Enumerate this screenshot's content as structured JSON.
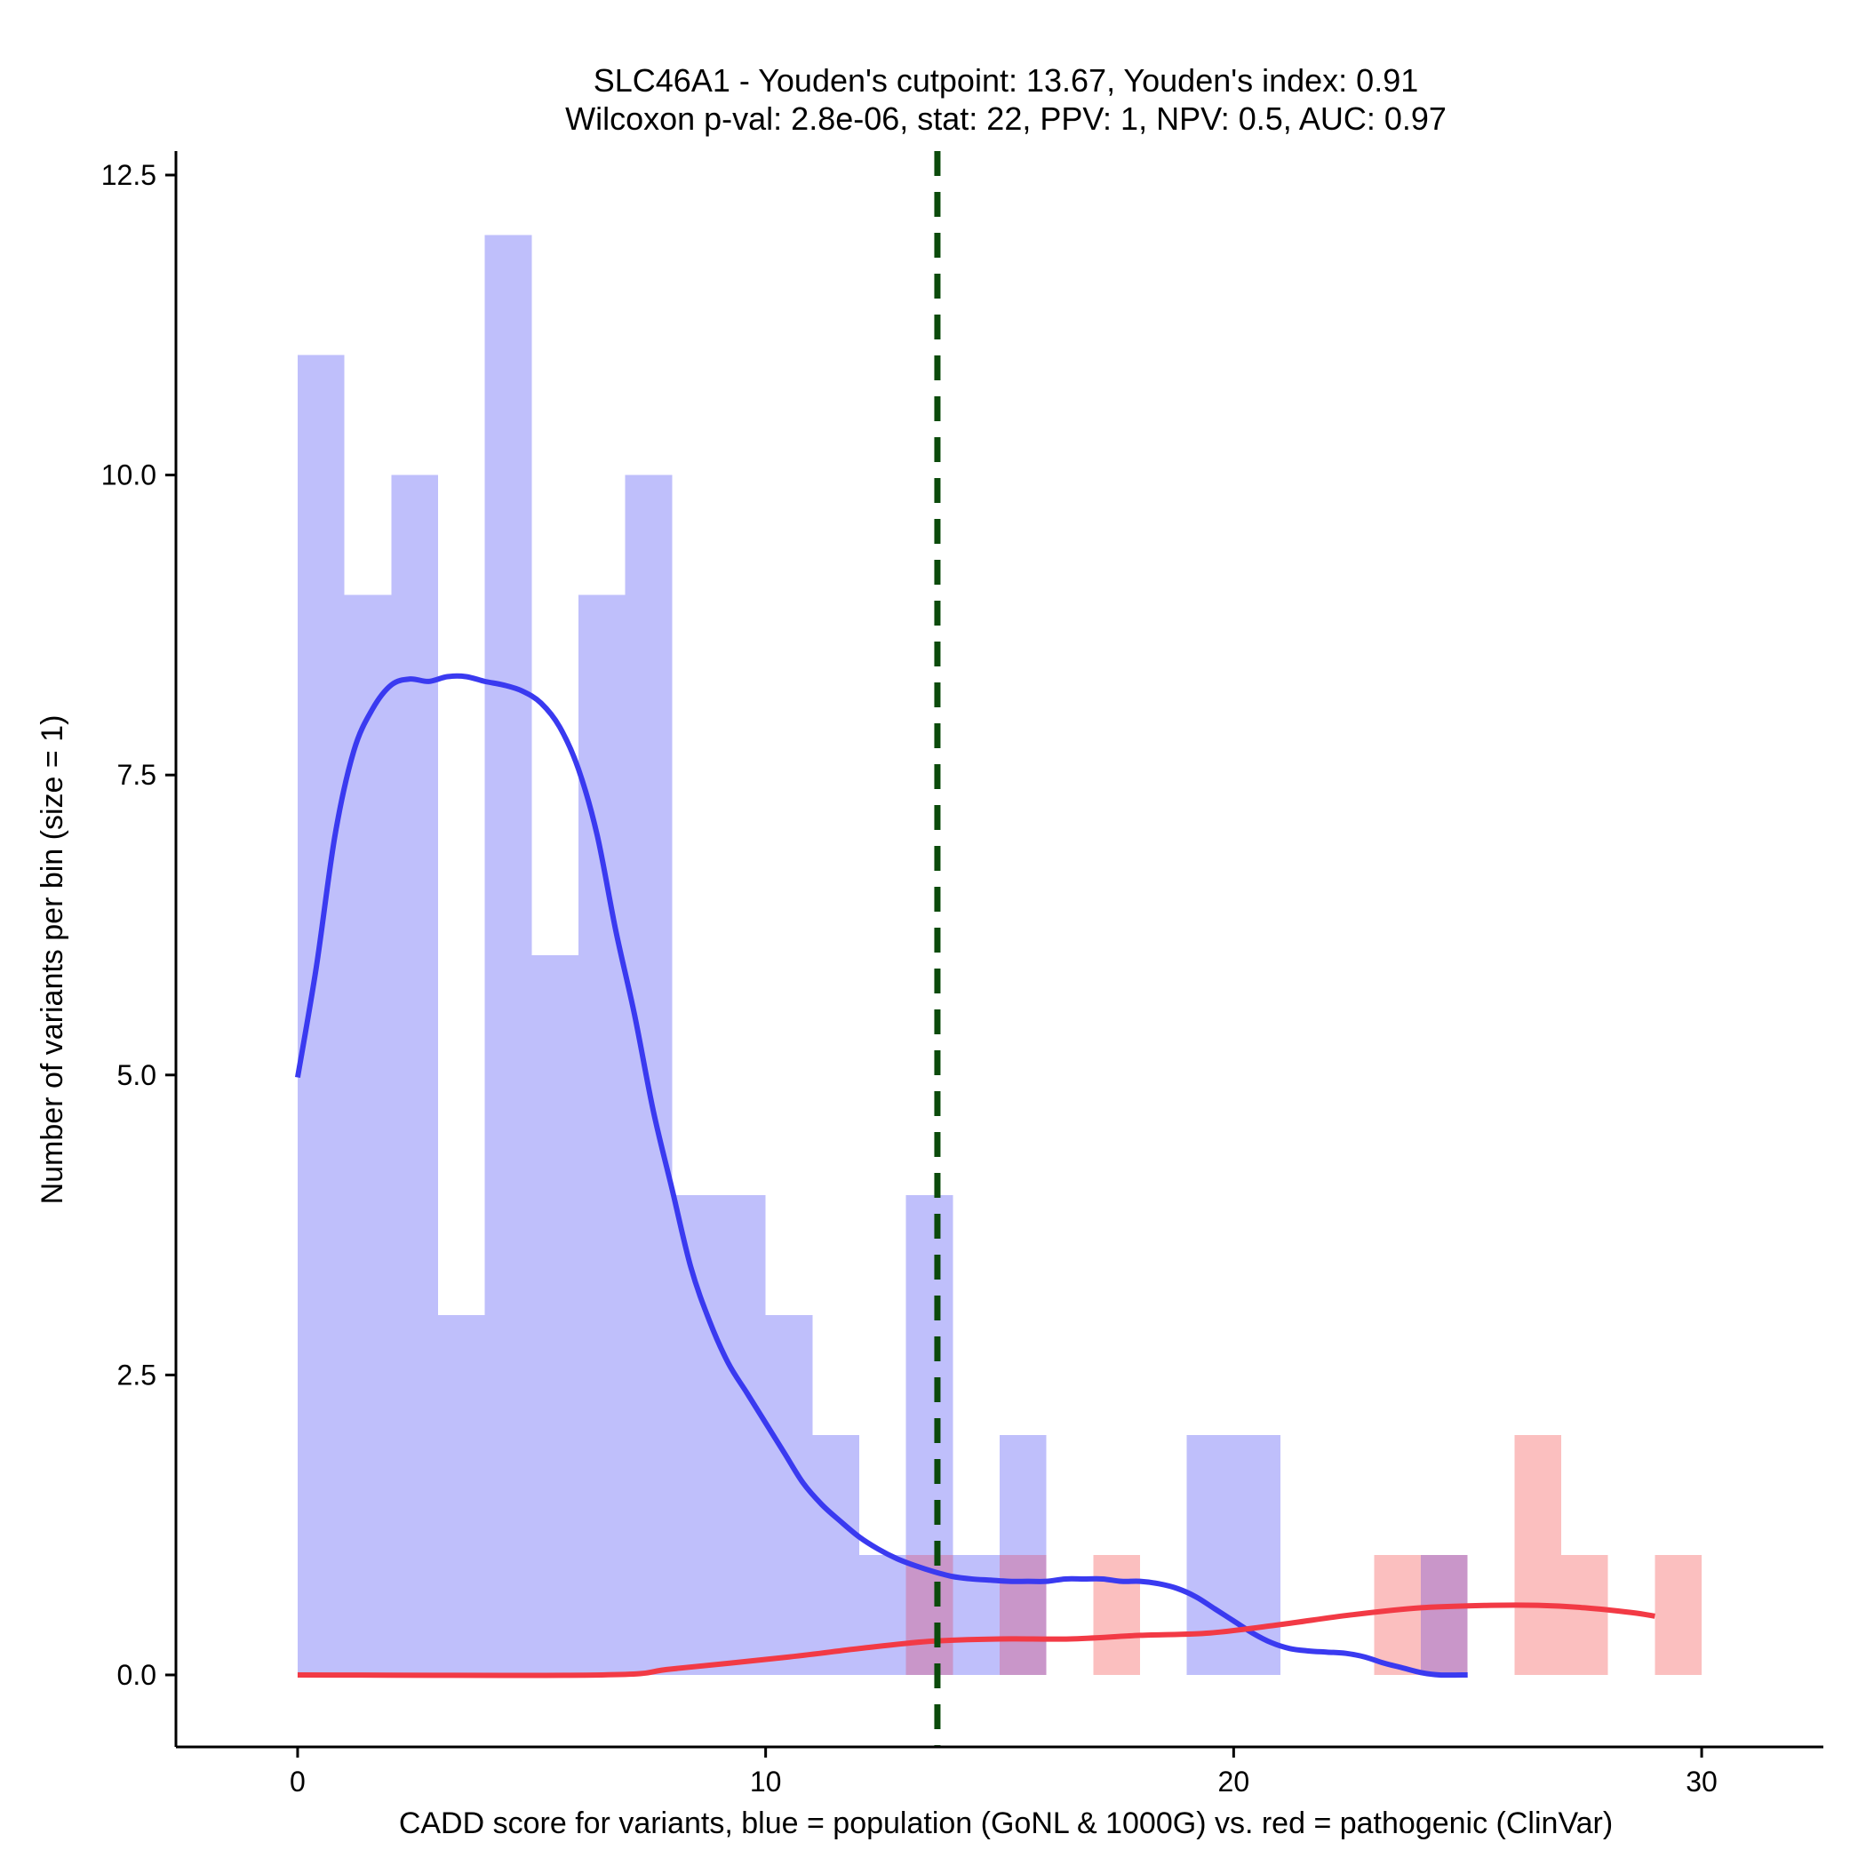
{
  "chart_data": {
    "type": "histogram",
    "title_lines": [
      "SLC46A1 - Youden's cutpoint: 13.67, Youden's index: 0.91",
      "Wilcoxon p-val: 2.8e-06, stat: 22, PPV: 1, NPV: 0.5, AUC: 0.97"
    ],
    "xlabel": "CADD score for variants, blue = population (GoNL & 1000G) vs. red = pathogenic (ClinVar)",
    "ylabel": "Number of variants per bin (size = 1)",
    "xlim": [
      -2.6,
      32.6
    ],
    "ylim": [
      -0.6,
      12.7
    ],
    "xticks": [
      0,
      10,
      20,
      30
    ],
    "xtick_labels": [
      "0",
      "10",
      "20",
      "30"
    ],
    "yticks": [
      0,
      2.5,
      5,
      7.5,
      10,
      12.5
    ],
    "ytick_labels": [
      "0.0",
      "2.5",
      "5.0",
      "7.5",
      "10.0",
      "12.5"
    ],
    "bin_width": 1,
    "cutpoint": 13.67,
    "colors": {
      "population_fill": "#bfbffb",
      "pathogenic_fill": "#fbbfbf",
      "overlap_fill": "#c996c9",
      "population_line": "#3a3af0",
      "pathogenic_line": "#f23a45",
      "cutpoint_line": "#0b4a0b"
    },
    "series": [
      {
        "name": "population (GoNL & 1000G)",
        "bins": [
          {
            "start": 0,
            "count": 11
          },
          {
            "start": 1,
            "count": 9
          },
          {
            "start": 2,
            "count": 10
          },
          {
            "start": 3,
            "count": 3
          },
          {
            "start": 4,
            "count": 12
          },
          {
            "start": 5,
            "count": 6
          },
          {
            "start": 6,
            "count": 9
          },
          {
            "start": 7,
            "count": 10
          },
          {
            "start": 8,
            "count": 4
          },
          {
            "start": 9,
            "count": 4
          },
          {
            "start": 10,
            "count": 3
          },
          {
            "start": 11,
            "count": 2
          },
          {
            "start": 12,
            "count": 1
          },
          {
            "start": 13,
            "count": 4
          },
          {
            "start": 14,
            "count": 1
          },
          {
            "start": 15,
            "count": 2
          },
          {
            "start": 19,
            "count": 2
          },
          {
            "start": 20,
            "count": 2
          },
          {
            "start": 24,
            "count": 1
          }
        ],
        "density_curve": [
          [
            0,
            4.98
          ],
          [
            0.4,
            5.9
          ],
          [
            0.8,
            7.0
          ],
          [
            1.2,
            7.7
          ],
          [
            1.6,
            8.05
          ],
          [
            2.0,
            8.25
          ],
          [
            2.4,
            8.3
          ],
          [
            2.8,
            8.28
          ],
          [
            3.2,
            8.32
          ],
          [
            3.6,
            8.32
          ],
          [
            4.0,
            8.28
          ],
          [
            4.4,
            8.25
          ],
          [
            4.8,
            8.2
          ],
          [
            5.2,
            8.1
          ],
          [
            5.6,
            7.9
          ],
          [
            6.0,
            7.55
          ],
          [
            6.4,
            7.0
          ],
          [
            6.8,
            6.2
          ],
          [
            7.2,
            5.5
          ],
          [
            7.6,
            4.7
          ],
          [
            8.0,
            4.05
          ],
          [
            8.4,
            3.4
          ],
          [
            8.8,
            2.95
          ],
          [
            9.2,
            2.6
          ],
          [
            9.6,
            2.35
          ],
          [
            10.0,
            2.1
          ],
          [
            10.4,
            1.85
          ],
          [
            10.8,
            1.6
          ],
          [
            11.2,
            1.42
          ],
          [
            11.6,
            1.28
          ],
          [
            12.0,
            1.15
          ],
          [
            12.4,
            1.05
          ],
          [
            12.8,
            0.97
          ],
          [
            13.2,
            0.91
          ],
          [
            13.6,
            0.86
          ],
          [
            14.0,
            0.82
          ],
          [
            14.4,
            0.8
          ],
          [
            14.8,
            0.79
          ],
          [
            15.2,
            0.78
          ],
          [
            15.6,
            0.78
          ],
          [
            16.0,
            0.78
          ],
          [
            16.4,
            0.8
          ],
          [
            16.8,
            0.8
          ],
          [
            17.2,
            0.8
          ],
          [
            17.6,
            0.78
          ],
          [
            18.0,
            0.78
          ],
          [
            18.4,
            0.76
          ],
          [
            18.8,
            0.72
          ],
          [
            19.2,
            0.65
          ],
          [
            19.6,
            0.55
          ],
          [
            20.0,
            0.45
          ],
          [
            20.4,
            0.35
          ],
          [
            20.8,
            0.27
          ],
          [
            21.2,
            0.22
          ],
          [
            21.6,
            0.2
          ],
          [
            22.0,
            0.19
          ],
          [
            22.4,
            0.18
          ],
          [
            22.8,
            0.15
          ],
          [
            23.2,
            0.1
          ],
          [
            23.6,
            0.06
          ],
          [
            24.0,
            0.02
          ],
          [
            24.4,
            0.0
          ],
          [
            25.0,
            0.0
          ]
        ]
      },
      {
        "name": "pathogenic (ClinVar)",
        "bins": [
          {
            "start": 13,
            "count": 1
          },
          {
            "start": 15,
            "count": 1
          },
          {
            "start": 17,
            "count": 1
          },
          {
            "start": 23,
            "count": 1
          },
          {
            "start": 24,
            "count": 1
          },
          {
            "start": 26,
            "count": 2
          },
          {
            "start": 27,
            "count": 1
          },
          {
            "start": 29,
            "count": 1
          }
        ],
        "density_curve": [
          [
            0,
            0.0
          ],
          [
            6.5,
            0.0
          ],
          [
            8.0,
            0.05
          ],
          [
            10.5,
            0.15
          ],
          [
            12.0,
            0.22
          ],
          [
            13.5,
            0.28
          ],
          [
            15.0,
            0.3
          ],
          [
            16.5,
            0.3
          ],
          [
            18.0,
            0.33
          ],
          [
            19.5,
            0.35
          ],
          [
            21.0,
            0.42
          ],
          [
            22.5,
            0.5
          ],
          [
            24.0,
            0.56
          ],
          [
            25.5,
            0.58
          ],
          [
            26.5,
            0.58
          ],
          [
            27.5,
            0.56
          ],
          [
            28.5,
            0.52
          ],
          [
            29.0,
            0.49
          ]
        ]
      }
    ]
  }
}
